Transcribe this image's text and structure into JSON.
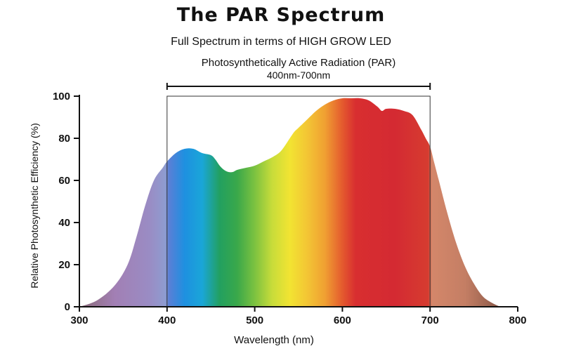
{
  "chart_data": {
    "type": "area",
    "title": "The PAR Spectrum",
    "subtitle": "Full Spectrum in terms of HIGH GROW LED",
    "xlabel": "Wavelength (nm)",
    "ylabel": "Relative Photosynthetic Efficiency (%)",
    "xlim": [
      300,
      800
    ],
    "ylim": [
      0,
      100
    ],
    "x_ticks": [
      300,
      400,
      500,
      600,
      700,
      800
    ],
    "y_ticks": [
      0,
      20,
      40,
      60,
      80,
      100
    ],
    "series": [
      {
        "name": "Relative Photosynthetic Efficiency",
        "x": [
          300,
          320,
          340,
          355,
          365,
          375,
          385,
          395,
          400,
          410,
          420,
          430,
          440,
          450,
          455,
          460,
          465,
          470,
          475,
          480,
          490,
          500,
          510,
          520,
          530,
          540,
          545,
          550,
          560,
          570,
          580,
          590,
          600,
          610,
          620,
          630,
          640,
          645,
          650,
          660,
          670,
          680,
          690,
          695,
          700,
          705,
          710,
          720,
          730,
          740,
          750,
          760,
          770,
          780
        ],
        "values": [
          0,
          3,
          10,
          20,
          33,
          48,
          60,
          66,
          69,
          73,
          75,
          75,
          73,
          72,
          70,
          67,
          65,
          64,
          64,
          65,
          66,
          67,
          69,
          71,
          74,
          80,
          83,
          85,
          89,
          93,
          96,
          98,
          99,
          99,
          99,
          98,
          95,
          93,
          94,
          94,
          93,
          91,
          84,
          80,
          76,
          68,
          60,
          44,
          30,
          19,
          11,
          5,
          2,
          0
        ]
      }
    ],
    "par_range": {
      "start": 400,
      "end": 700,
      "label": "Photosynthetically Active Radiation (PAR)",
      "sublabel": "400nm-700nm"
    },
    "spectrum_colors": [
      {
        "nm": 300,
        "color": "#8a6a78"
      },
      {
        "nm": 340,
        "color": "#a27fb4"
      },
      {
        "nm": 380,
        "color": "#9a8cc4"
      },
      {
        "nm": 398,
        "color": "#8e9cd0"
      },
      {
        "nm": 402,
        "color": "#5a7fd6"
      },
      {
        "nm": 420,
        "color": "#1e90e0"
      },
      {
        "nm": 440,
        "color": "#1aa6d8"
      },
      {
        "nm": 460,
        "color": "#22a060"
      },
      {
        "nm": 480,
        "color": "#3aa84a"
      },
      {
        "nm": 500,
        "color": "#7cc240"
      },
      {
        "nm": 520,
        "color": "#c8dc3a"
      },
      {
        "nm": 540,
        "color": "#f2e432"
      },
      {
        "nm": 560,
        "color": "#f3c534"
      },
      {
        "nm": 580,
        "color": "#f0a032"
      },
      {
        "nm": 600,
        "color": "#e45a2e"
      },
      {
        "nm": 615,
        "color": "#d82e30"
      },
      {
        "nm": 660,
        "color": "#d42a32"
      },
      {
        "nm": 698,
        "color": "#d63c30"
      },
      {
        "nm": 702,
        "color": "#d4876a"
      },
      {
        "nm": 740,
        "color": "#c47e64"
      },
      {
        "nm": 780,
        "color": "#8a5848"
      }
    ]
  }
}
